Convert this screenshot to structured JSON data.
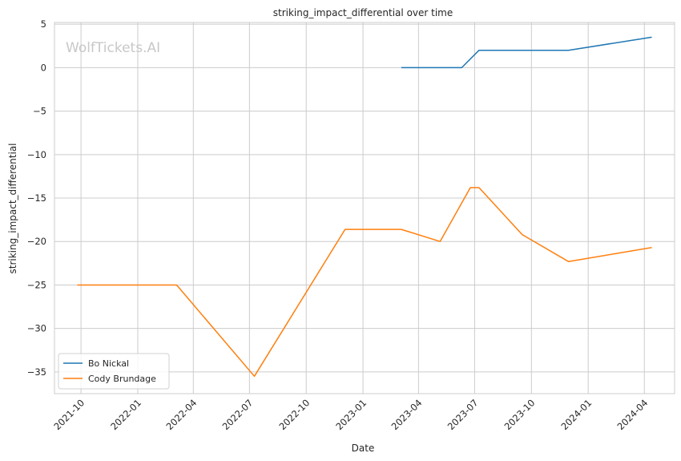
{
  "watermark": "WolfTickets.AI",
  "chart_data": {
    "type": "line",
    "title": "striking_impact_differential over time",
    "xlabel": "Date",
    "ylabel": "striking_impact_differential",
    "xlim": [
      "2021-08-19",
      "2024-05-20"
    ],
    "ylim": [
      -37.5,
      5.2
    ],
    "x_ticks": [
      {
        "date": "2021-10-01",
        "label": "2021-10"
      },
      {
        "date": "2022-01-01",
        "label": "2022-01"
      },
      {
        "date": "2022-04-01",
        "label": "2022-04"
      },
      {
        "date": "2022-07-01",
        "label": "2022-07"
      },
      {
        "date": "2022-10-01",
        "label": "2022-10"
      },
      {
        "date": "2023-01-01",
        "label": "2023-01"
      },
      {
        "date": "2023-04-01",
        "label": "2023-04"
      },
      {
        "date": "2023-07-01",
        "label": "2023-07"
      },
      {
        "date": "2023-10-01",
        "label": "2023-10"
      },
      {
        "date": "2024-01-01",
        "label": "2024-01"
      },
      {
        "date": "2024-04-01",
        "label": "2024-04"
      }
    ],
    "y_ticks": [
      5,
      0,
      -5,
      -10,
      -15,
      -20,
      -25,
      -30,
      -35
    ],
    "y_tick_labels": [
      "5",
      "0",
      "−5",
      "−10",
      "−15",
      "−20",
      "−25",
      "−30",
      "−35"
    ],
    "grid": true,
    "legend_position": "lower-left",
    "series": [
      {
        "name": "Bo Nickal",
        "color": "#1f77b4",
        "points": [
          {
            "x": "2023-03-04",
            "y": 0
          },
          {
            "x": "2023-06-10",
            "y": 0
          },
          {
            "x": "2023-07-08",
            "y": 2
          },
          {
            "x": "2023-11-30",
            "y": 2
          },
          {
            "x": "2024-04-13",
            "y": 3.5
          }
        ]
      },
      {
        "name": "Cody Brundage",
        "color": "#ff7f0e",
        "points": [
          {
            "x": "2021-09-25",
            "y": -25
          },
          {
            "x": "2022-03-05",
            "y": -25
          },
          {
            "x": "2022-07-09",
            "y": -35.5
          },
          {
            "x": "2022-12-03",
            "y": -18.6
          },
          {
            "x": "2023-03-04",
            "y": -18.6
          },
          {
            "x": "2023-05-06",
            "y": -20
          },
          {
            "x": "2023-06-24",
            "y": -13.8
          },
          {
            "x": "2023-07-08",
            "y": -13.8
          },
          {
            "x": "2023-09-16",
            "y": -19.2
          },
          {
            "x": "2023-11-30",
            "y": -22.3
          },
          {
            "x": "2024-04-13",
            "y": -20.7
          }
        ]
      }
    ]
  }
}
